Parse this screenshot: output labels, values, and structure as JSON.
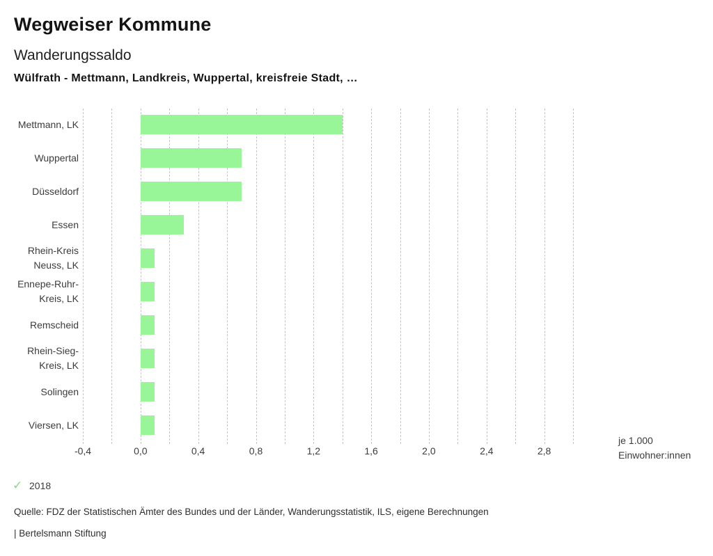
{
  "header": {
    "title": "Wegweiser Kommune",
    "subtitle": "Wanderungssaldo",
    "region_line": "Wülfrath - Mettmann, Landkreis, Wuppertal, kreisfreie Stadt, …"
  },
  "chart_data": {
    "type": "bar",
    "orientation": "horizontal",
    "title": "Wanderungssaldo",
    "categories": [
      "Mettmann, LK",
      "Wuppertal",
      "Düsseldorf",
      "Essen",
      "Rhein-Kreis Neuss, LK",
      "Ennepe-Ruhr-Kreis, LK",
      "Remscheid",
      "Rhein-Sieg-Kreis, LK",
      "Solingen",
      "Viersen, LK"
    ],
    "category_label_lines": [
      [
        "Mettmann, LK"
      ],
      [
        "Wuppertal"
      ],
      [
        "Düsseldorf"
      ],
      [
        "Essen"
      ],
      [
        "Rhein-Kreis",
        "Neuss, LK"
      ],
      [
        "Ennepe-Ruhr-",
        "Kreis, LK"
      ],
      [
        "Remscheid"
      ],
      [
        "Rhein-Sieg-",
        "Kreis, LK"
      ],
      [
        "Solingen"
      ],
      [
        "Viersen, LK"
      ]
    ],
    "values": [
      1.4,
      0.7,
      0.7,
      0.3,
      0.1,
      0.1,
      0.1,
      0.1,
      0.1,
      0.1
    ],
    "series_year": "2018",
    "xlim": [
      -0.4,
      3.0
    ],
    "grid": true,
    "grid_step": 0.2,
    "tick_values": [
      -0.4,
      0.0,
      0.4,
      0.8,
      1.2,
      1.6,
      2.0,
      2.4,
      2.8
    ],
    "tick_labels": [
      "-0,4",
      "0,0",
      "0,4",
      "0,8",
      "1,2",
      "1,6",
      "2,0",
      "2,4",
      "2,8"
    ],
    "xlabel_lines": [
      "je 1.000",
      "Einwohner:innen"
    ],
    "bar_color": "#98f698",
    "grid_color": "#c4c4c4",
    "legend": {
      "year": "2018",
      "check_icon": "✓",
      "check_color": "#86da86",
      "position": "bottom-left"
    }
  },
  "footer": {
    "source": "Quelle: FDZ der Statistischen Ämter des Bundes und der Länder, Wanderungsstatistik, ILS, eigene Berechnungen",
    "branding": "| Bertelsmann Stiftung"
  }
}
